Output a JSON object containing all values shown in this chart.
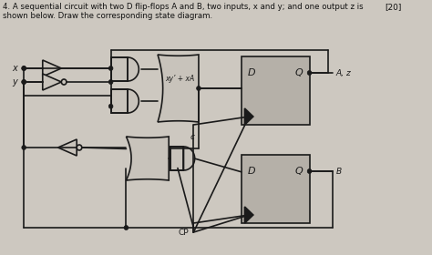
{
  "title_line1": "4. A sequential circuit with two D flip-flops A and B, two inputs, x and y; and one output z is",
  "title_line2": "shown below. Draw the corresponding state diagram.",
  "title_points": "[20]",
  "bg_color": "#cdc8c0",
  "line_color": "#1a1a1a",
  "gate_fill": "#c8c3bb",
  "flipflop_fill": "#b5b0a8",
  "label_xy1": "xy’ + xA",
  "label_c": "c",
  "label_cp": "CP",
  "label_Az": "A, z",
  "label_B": "B",
  "label_x": "x",
  "label_y": "y",
  "label_D1": "D",
  "label_Q1": "Q",
  "label_D2": "D",
  "label_Q2": "Q"
}
